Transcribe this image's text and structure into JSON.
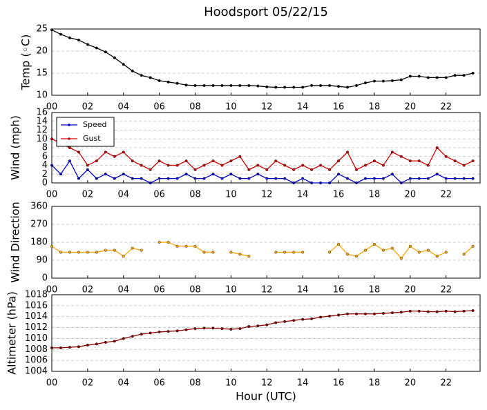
{
  "chart_data": [
    {
      "type": "line",
      "title": "Hoodsport 05/22/15",
      "ylabel": "Temp (◦C)",
      "x": [
        0,
        0.5,
        1,
        1.5,
        2,
        2.5,
        3,
        3.5,
        4,
        4.5,
        5,
        5.5,
        6,
        6.5,
        7,
        7.5,
        8,
        8.5,
        9,
        9.5,
        10,
        10.5,
        11,
        11.5,
        12,
        12.5,
        13,
        13.5,
        14,
        14.5,
        15,
        15.5,
        16,
        16.5,
        17,
        17.5,
        18,
        18.5,
        19,
        19.5,
        20,
        20.5,
        21,
        21.5,
        22,
        22.5,
        23,
        23.5
      ],
      "series": [
        {
          "name": "Temp",
          "color": "#000000",
          "values": [
            24.8,
            23.8,
            23,
            22.5,
            21.5,
            20.7,
            19.8,
            18.5,
            17,
            15.5,
            14.5,
            14,
            13.3,
            13,
            12.7,
            12.3,
            12.2,
            12.2,
            12.2,
            12.2,
            12.2,
            12.2,
            12.2,
            12.1,
            11.9,
            11.8,
            11.8,
            11.8,
            11.8,
            12.2,
            12.2,
            12.2,
            12,
            11.8,
            12.2,
            12.8,
            13.2,
            13.2,
            13.3,
            13.5,
            14.3,
            14.3,
            14,
            14,
            14,
            14.5,
            14.5,
            15
          ]
        }
      ],
      "xlim": [
        0,
        23.9
      ],
      "ylim": [
        10,
        25
      ],
      "yticks": [
        10,
        15,
        20,
        25
      ],
      "xticks": [
        {
          "value": 0,
          "label": "00"
        },
        {
          "value": 2,
          "label": "02"
        },
        {
          "value": 4,
          "label": "04"
        },
        {
          "value": 6,
          "label": "06"
        },
        {
          "value": 8,
          "label": "08"
        },
        {
          "value": 10,
          "label": "10"
        },
        {
          "value": 12,
          "label": "12"
        },
        {
          "value": 14,
          "label": "14"
        },
        {
          "value": 16,
          "label": "16"
        },
        {
          "value": 18,
          "label": "18"
        },
        {
          "value": 20,
          "label": "20"
        },
        {
          "value": 22,
          "label": "22"
        }
      ],
      "grid": true
    },
    {
      "type": "line",
      "ylabel": "Wind (mph)",
      "legend": "upper left",
      "x": [
        0,
        0.5,
        1,
        1.5,
        2,
        2.5,
        3,
        3.5,
        4,
        4.5,
        5,
        5.5,
        6,
        6.5,
        7,
        7.5,
        8,
        8.5,
        9,
        9.5,
        10,
        10.5,
        11,
        11.5,
        12,
        12.5,
        13,
        13.5,
        14,
        14.5,
        15,
        15.5,
        16,
        16.5,
        17,
        17.5,
        18,
        18.5,
        19,
        19.5,
        20,
        20.5,
        21,
        21.5,
        22,
        22.5,
        23,
        23.5
      ],
      "series": [
        {
          "name": "Speed",
          "color": "#0000cc",
          "values": [
            4,
            2,
            5,
            1,
            3,
            1,
            2,
            1,
            2,
            1,
            1,
            0,
            1,
            1,
            1,
            2,
            1,
            1,
            2,
            1,
            2,
            1,
            1,
            2,
            1,
            1,
            1,
            0,
            1,
            0,
            0,
            0,
            2,
            1,
            0,
            1,
            1,
            1,
            2,
            0,
            1,
            1,
            1,
            2,
            1,
            1,
            1,
            1
          ]
        },
        {
          "name": "Gust",
          "color": "#cc0000",
          "values": [
            10,
            9,
            8,
            7,
            4,
            5,
            7,
            6,
            7,
            5,
            4,
            3,
            5,
            4,
            4,
            5,
            3,
            4,
            5,
            4,
            5,
            6,
            3,
            4,
            3,
            5,
            4,
            3,
            4,
            3,
            4,
            3,
            5,
            7,
            3,
            4,
            5,
            4,
            7,
            6,
            5,
            5,
            4,
            8,
            6,
            5,
            4,
            5
          ]
        }
      ],
      "xlim": [
        0,
        23.9
      ],
      "ylim": [
        0,
        16
      ],
      "yticks": [
        0,
        2,
        4,
        6,
        8,
        10,
        12,
        14,
        16
      ],
      "xticks": [
        {
          "value": 0,
          "label": "00"
        },
        {
          "value": 2,
          "label": "02"
        },
        {
          "value": 4,
          "label": "04"
        },
        {
          "value": 6,
          "label": "06"
        },
        {
          "value": 8,
          "label": "08"
        },
        {
          "value": 10,
          "label": "10"
        },
        {
          "value": 12,
          "label": "12"
        },
        {
          "value": 14,
          "label": "14"
        },
        {
          "value": 16,
          "label": "16"
        },
        {
          "value": 18,
          "label": "18"
        },
        {
          "value": 20,
          "label": "20"
        },
        {
          "value": 22,
          "label": "22"
        }
      ],
      "grid": true
    },
    {
      "type": "line",
      "ylabel": "Wind Direction",
      "x": [
        0,
        0.5,
        1,
        1.5,
        2,
        2.5,
        3,
        3.5,
        4,
        4.5,
        5,
        5.5,
        6,
        6.5,
        7,
        7.5,
        8,
        8.5,
        9,
        9.5,
        10,
        10.5,
        11,
        11.5,
        12,
        12.5,
        13,
        13.5,
        14,
        14.5,
        15,
        15.5,
        16,
        16.5,
        17,
        17.5,
        18,
        18.5,
        19,
        19.5,
        20,
        20.5,
        21,
        21.5,
        22,
        22.5,
        23,
        23.5
      ],
      "series": [
        {
          "name": "Direction",
          "color": "#ffa500",
          "values": [
            160,
            130,
            130,
            130,
            130,
            130,
            140,
            140,
            110,
            150,
            140,
            null,
            180,
            180,
            160,
            160,
            160,
            130,
            130,
            null,
            130,
            120,
            110,
            null,
            null,
            130,
            130,
            130,
            130,
            null,
            null,
            130,
            170,
            120,
            110,
            140,
            170,
            140,
            150,
            100,
            160,
            130,
            140,
            110,
            130,
            null,
            120,
            160
          ]
        }
      ],
      "xlim": [
        0,
        23.9
      ],
      "ylim": [
        0,
        360
      ],
      "yticks": [
        0,
        90,
        180,
        270,
        360
      ],
      "xticks": [
        {
          "value": 0,
          "label": "00"
        },
        {
          "value": 2,
          "label": "02"
        },
        {
          "value": 4,
          "label": "04"
        },
        {
          "value": 6,
          "label": "06"
        },
        {
          "value": 8,
          "label": "08"
        },
        {
          "value": 10,
          "label": "10"
        },
        {
          "value": 12,
          "label": "12"
        },
        {
          "value": 14,
          "label": "14"
        },
        {
          "value": 16,
          "label": "16"
        },
        {
          "value": 18,
          "label": "18"
        },
        {
          "value": 20,
          "label": "20"
        },
        {
          "value": 22,
          "label": "22"
        }
      ],
      "grid": true
    },
    {
      "type": "line",
      "ylabel": "Altimeter (hPa)",
      "xlabel": "Hour (UTC)",
      "x": [
        0,
        0.5,
        1,
        1.5,
        2,
        2.5,
        3,
        3.5,
        4,
        4.5,
        5,
        5.5,
        6,
        6.5,
        7,
        7.5,
        8,
        8.5,
        9,
        9.5,
        10,
        10.5,
        11,
        11.5,
        12,
        12.5,
        13,
        13.5,
        14,
        14.5,
        15,
        15.5,
        16,
        16.5,
        17,
        17.5,
        18,
        18.5,
        19,
        19.5,
        20,
        20.5,
        21,
        21.5,
        22,
        22.5,
        23,
        23.5
      ],
      "series": [
        {
          "name": "Altimeter",
          "color": "#8b0000",
          "values": [
            1008.3,
            1008.3,
            1008.4,
            1008.5,
            1008.8,
            1009,
            1009.3,
            1009.5,
            1010,
            1010.4,
            1010.8,
            1011,
            1011.2,
            1011.3,
            1011.4,
            1011.6,
            1011.8,
            1011.9,
            1011.9,
            1011.8,
            1011.7,
            1011.8,
            1012.2,
            1012.3,
            1012.5,
            1012.9,
            1013.1,
            1013.3,
            1013.5,
            1013.6,
            1013.9,
            1014.1,
            1014.3,
            1014.5,
            1014.5,
            1014.5,
            1014.5,
            1014.6,
            1014.7,
            1014.8,
            1015,
            1015,
            1014.9,
            1014.9,
            1015,
            1014.9,
            1015,
            1015.1
          ]
        }
      ],
      "xlim": [
        0,
        23.9
      ],
      "ylim": [
        1004,
        1018
      ],
      "yticks": [
        1004,
        1006,
        1008,
        1010,
        1012,
        1014,
        1016,
        1018
      ],
      "xticks": [
        {
          "value": 0,
          "label": "00"
        },
        {
          "value": 2,
          "label": "02"
        },
        {
          "value": 4,
          "label": "04"
        },
        {
          "value": 6,
          "label": "06"
        },
        {
          "value": 8,
          "label": "08"
        },
        {
          "value": 10,
          "label": "10"
        },
        {
          "value": 12,
          "label": "12"
        },
        {
          "value": 14,
          "label": "14"
        },
        {
          "value": 16,
          "label": "16"
        },
        {
          "value": 18,
          "label": "18"
        },
        {
          "value": 20,
          "label": "20"
        },
        {
          "value": 22,
          "label": "22"
        }
      ],
      "grid": true
    }
  ]
}
